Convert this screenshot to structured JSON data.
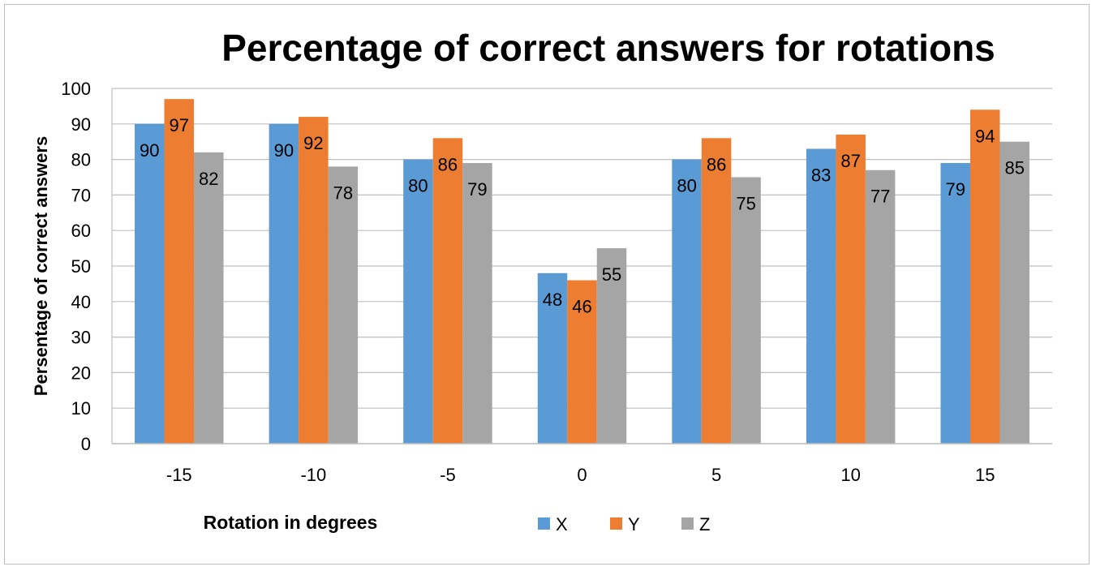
{
  "chart_data": {
    "type": "bar",
    "title": "Percentage of correct answers for rotations",
    "xlabel": "Rotation in  degrees",
    "ylabel": "Persentage of correct answers",
    "categories": [
      "-15",
      "-10",
      "-5",
      "0",
      "5",
      "10",
      "15"
    ],
    "series": [
      {
        "name": "X",
        "color": "#5b9bd5",
        "values": [
          90,
          90,
          80,
          48,
          80,
          83,
          79
        ]
      },
      {
        "name": "Y",
        "color": "#ed7d31",
        "values": [
          97,
          92,
          86,
          46,
          86,
          87,
          94
        ]
      },
      {
        "name": "Z",
        "color": "#a5a5a5",
        "values": [
          82,
          78,
          79,
          55,
          75,
          77,
          85
        ]
      }
    ],
    "ylim": [
      0,
      100
    ],
    "yticks": [
      "0",
      "10",
      "20",
      "30",
      "40",
      "50",
      "60",
      "70",
      "80",
      "90",
      "100"
    ],
    "grid": true,
    "legend": "bottom"
  }
}
